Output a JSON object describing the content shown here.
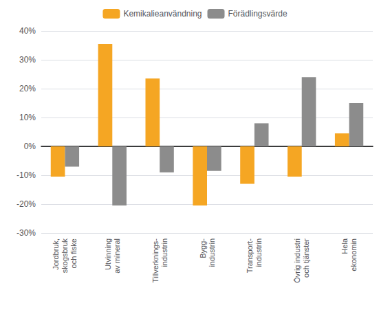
{
  "chart_data": {
    "type": "bar",
    "categories": [
      "Jordbruk,\nskogsbruk\noch fiske",
      "Utvinning\nav mineral",
      "Tillverknings-\nindustrin",
      "Bygg-\nindustrin",
      "Transport-\nindustrin",
      "Övrig industri\noch tjänster",
      "Hela\nekonomin"
    ],
    "series": [
      {
        "name": "Kemikalieanvändning",
        "color": "#F5A623",
        "values": [
          -10.5,
          35.5,
          23.5,
          -20.5,
          -13.0,
          -10.5,
          4.5
        ]
      },
      {
        "name": "Förädlingsvärde",
        "color": "#8C8C8C",
        "values": [
          -7.0,
          -20.5,
          -9.0,
          -8.5,
          8.0,
          24.0,
          15.0
        ]
      }
    ],
    "ylim": [
      -30,
      40
    ],
    "yticks": [
      {
        "value": -30,
        "label": "-30%"
      },
      {
        "value": -20,
        "label": "-20%"
      },
      {
        "value": -10,
        "label": "-10%"
      },
      {
        "value": 0,
        "label": "0%"
      },
      {
        "value": 10,
        "label": "10%"
      },
      {
        "value": 20,
        "label": "20%"
      },
      {
        "value": 30,
        "label": "30%"
      },
      {
        "value": 40,
        "label": "40%"
      }
    ],
    "grid": true,
    "legend": "top"
  }
}
